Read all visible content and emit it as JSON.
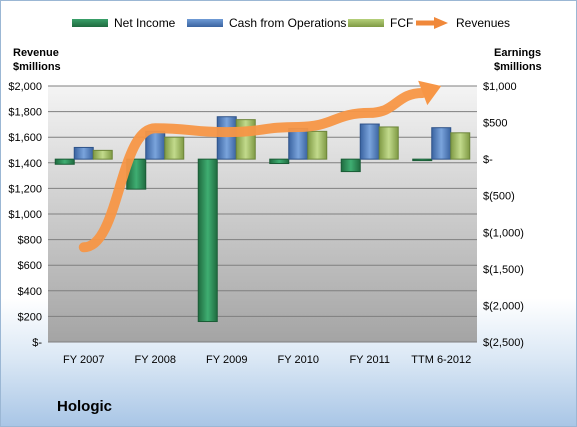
{
  "chart_data": {
    "type": "bar",
    "title": "Hologic",
    "categories": [
      "FY 2007",
      "FY 2008",
      "FY 2009",
      "FY 2010",
      "FY 2011",
      "TTM 6-2012"
    ],
    "series": [
      {
        "name": "Net Income",
        "axis": "right",
        "type": "bar",
        "color": "#2e8b57",
        "values": [
          -70,
          -410,
          -2220,
          -60,
          -170,
          -20
        ]
      },
      {
        "name": "Cash from Operations",
        "axis": "right",
        "type": "bar",
        "color": "#4f81bd",
        "values": [
          160,
          380,
          580,
          420,
          480,
          430
        ]
      },
      {
        "name": "FCF",
        "axis": "right",
        "type": "bar",
        "color": "#9bbb59",
        "values": [
          120,
          300,
          540,
          380,
          440,
          360
        ]
      },
      {
        "name": "Revenues",
        "axis": "left",
        "type": "line",
        "color": "#f79646",
        "values": [
          740,
          1670,
          1640,
          1680,
          1790,
          2000
        ]
      }
    ],
    "ylabel": "Revenue $millions",
    "ylim": [
      0,
      2000
    ],
    "yticks": [
      "$-",
      "$200",
      "$400",
      "$600",
      "$800",
      "$1,000",
      "$1,200",
      "$1,400",
      "$1,600",
      "$1,800",
      "$2,000"
    ],
    "y2label": "Earnings $millions",
    "y2lim": [
      -2500,
      1000
    ],
    "y2ticks": [
      "$(2,500)",
      "$(2,000)",
      "$(1,500)",
      "$(1,000)",
      "$(500)",
      "$-",
      "$500",
      "$1,000"
    ],
    "grid": true,
    "legend_position": "top"
  },
  "legend": {
    "net_income": "Net Income",
    "cfo": "Cash from Operations",
    "fcf": "FCF",
    "revenues": "Revenues"
  },
  "axis_titles": {
    "left_line1": "Revenue",
    "left_line2": "$millions",
    "right_line1": "Earnings",
    "right_line2": "$millions"
  },
  "company": "Hologic",
  "colors": {
    "net_income": "#2e8b57",
    "cfo": "#4f81bd",
    "fcf": "#9bbb59",
    "revenues": "#f79646"
  }
}
